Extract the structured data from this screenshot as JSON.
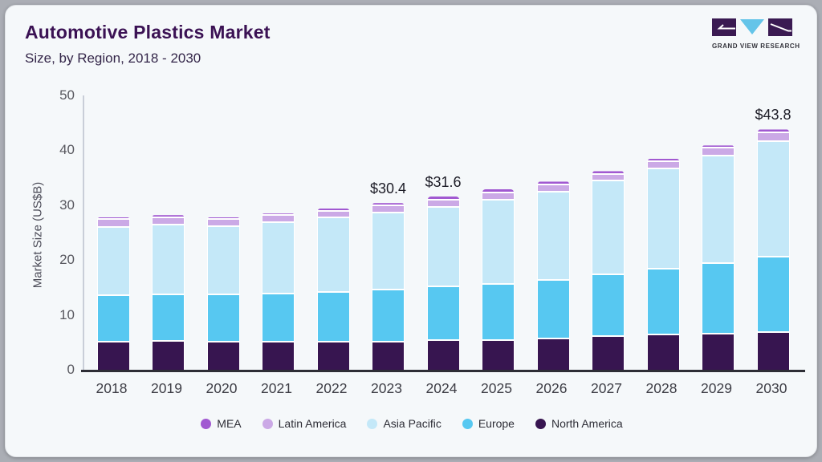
{
  "header": {
    "title": "Automotive Plastics Market",
    "subtitle": "Size, by Region, 2018 - 2030"
  },
  "logo": {
    "brand": "GRAND VIEW RESEARCH",
    "mark_dark": "#3a1a52",
    "mark_blue": "#64c4e9"
  },
  "chart_data": {
    "type": "bar",
    "stacked": true,
    "title": "Automotive Plastics Market Size, by Region, 2018 - 2030",
    "ylabel": "Market Size (US$B)",
    "xlabel": "",
    "ylim": [
      0,
      50
    ],
    "y_ticks": [
      0,
      10,
      20,
      30,
      40,
      50
    ],
    "grid": false,
    "legend_position": "bottom",
    "categories": [
      "2018",
      "2019",
      "2020",
      "2021",
      "2022",
      "2023",
      "2024",
      "2025",
      "2026",
      "2027",
      "2028",
      "2029",
      "2030"
    ],
    "series": [
      {
        "name": "North America",
        "color": "#371550",
        "values": [
          5.0,
          5.1,
          4.9,
          5.0,
          4.9,
          5.0,
          5.2,
          5.3,
          5.6,
          6.0,
          6.3,
          6.5,
          6.7
        ]
      },
      {
        "name": "Europe",
        "color": "#57c8f1",
        "values": [
          8.5,
          8.5,
          8.7,
          8.8,
          9.2,
          9.5,
          9.8,
          10.2,
          10.6,
          11.2,
          12.0,
          12.8,
          13.7
        ]
      },
      {
        "name": "Asia Pacific",
        "color": "#c4e8f8",
        "values": [
          12.4,
          12.7,
          12.4,
          12.9,
          13.5,
          14.0,
          14.5,
          15.3,
          16.1,
          17.1,
          18.2,
          19.6,
          21.1
        ]
      },
      {
        "name": "Latin America",
        "color": "#cba9e6",
        "values": [
          1.4,
          1.4,
          1.3,
          1.3,
          1.2,
          1.3,
          1.4,
          1.4,
          1.4,
          1.3,
          1.4,
          1.4,
          1.6
        ]
      },
      {
        "name": "MEA",
        "color": "#a159d1",
        "values": [
          0.5,
          0.5,
          0.5,
          0.5,
          0.6,
          0.6,
          0.7,
          0.7,
          0.6,
          0.6,
          0.6,
          0.6,
          0.7
        ]
      }
    ],
    "bar_labels": [
      "",
      "",
      "",
      "",
      "",
      "$30.4",
      "$31.6",
      "",
      "",
      "",
      "",
      "",
      "$43.8"
    ],
    "legend": [
      "MEA",
      "Latin America",
      "Asia Pacific",
      "Europe",
      "North America"
    ]
  }
}
